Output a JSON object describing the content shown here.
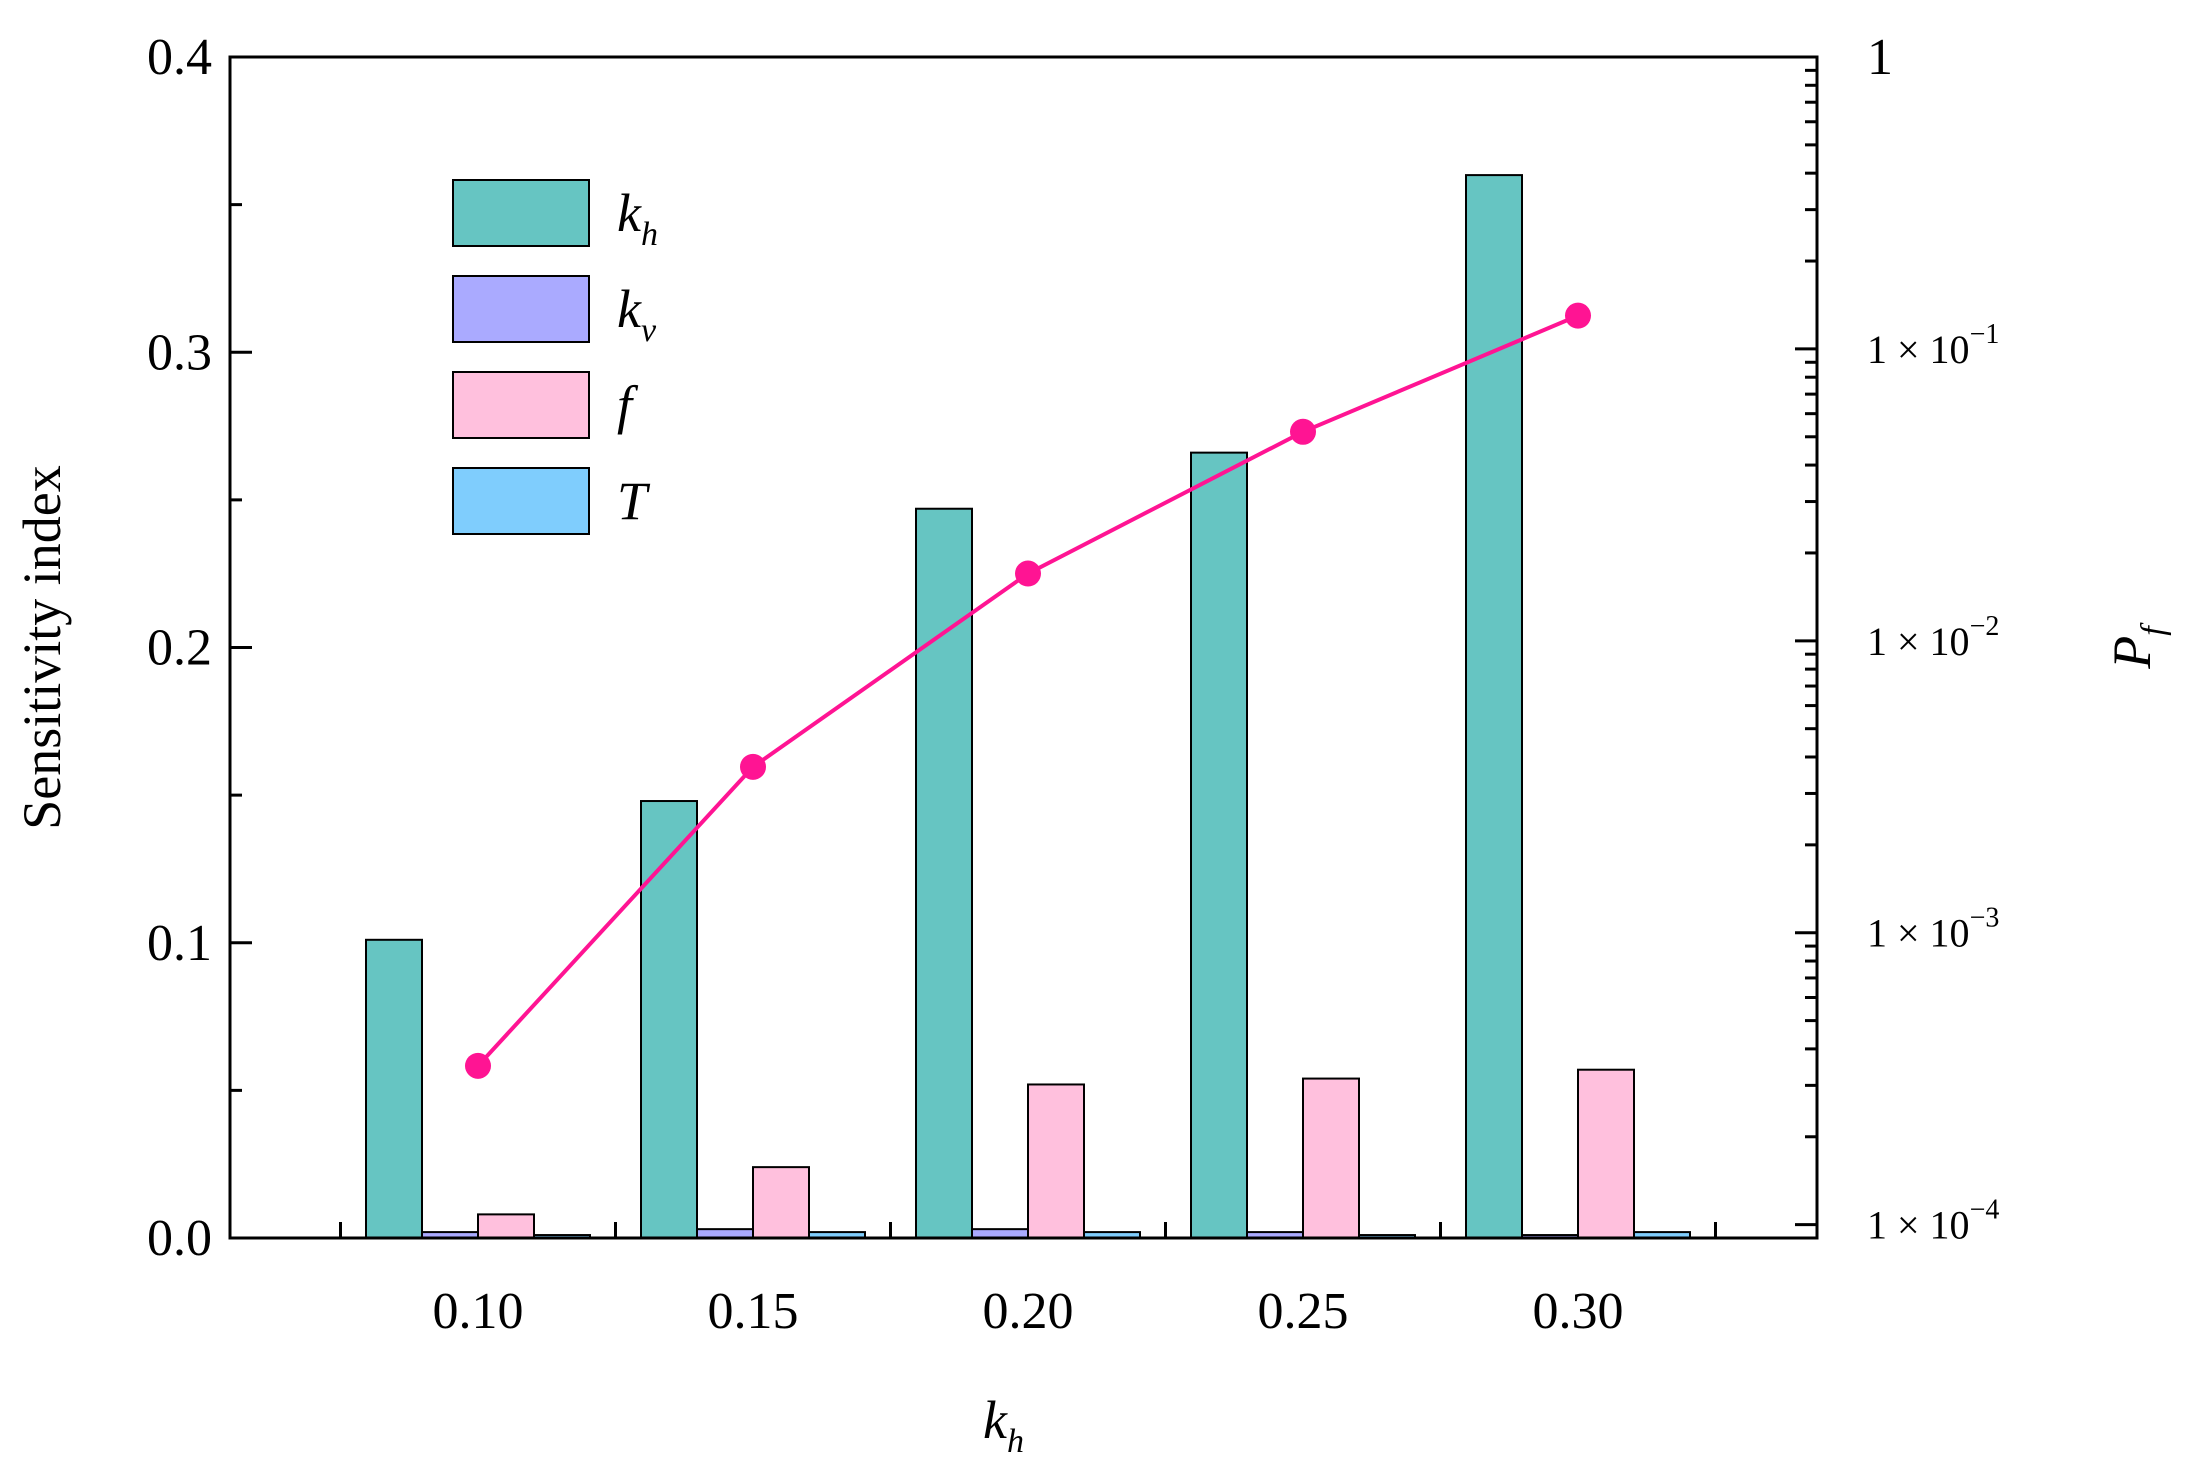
{
  "chart_data": {
    "type": "bar",
    "categories": [
      "0.10",
      "0.15",
      "0.20",
      "0.25",
      "0.30"
    ],
    "series": [
      {
        "name": "k_h",
        "label_main": "k",
        "label_sub": "h",
        "color": "#66c5c2",
        "values": [
          0.101,
          0.148,
          0.247,
          0.266,
          0.36
        ]
      },
      {
        "name": "k_v",
        "label_main": "k",
        "label_sub": "v",
        "color": "#aaaaff",
        "values": [
          0.002,
          0.003,
          0.003,
          0.002,
          0.001
        ]
      },
      {
        "name": "f",
        "label_main": "f",
        "label_sub": "",
        "color": "#ffc0dd",
        "values": [
          0.008,
          0.024,
          0.052,
          0.054,
          0.057
        ]
      },
      {
        "name": "T",
        "label_main": "T",
        "label_sub": "",
        "color": "#7fcdfd",
        "values": [
          0.001,
          0.002,
          0.002,
          0.001,
          0.002
        ]
      }
    ],
    "line_series": {
      "axis": "right",
      "color": "#ff1493",
      "x": [
        "0.10",
        "0.15",
        "0.20",
        "0.25",
        "0.30"
      ],
      "values": [
        0.00035,
        0.0037,
        0.017,
        0.052,
        0.13
      ]
    },
    "xlabel_main": "k",
    "xlabel_sub": "h",
    "ylabel": "Sensitivity index",
    "ylim": [
      0,
      0.4
    ],
    "y_ticks": [
      "0.0",
      "0.1",
      "0.2",
      "0.3",
      "0.4"
    ],
    "y2label_main": "P",
    "y2label_sub": "f",
    "y2_scale": "log",
    "y2lim": [
      9e-05,
      1
    ],
    "y2_ticks": [
      {
        "value": 1,
        "main": "1",
        "exp": ""
      },
      {
        "value": 0.1,
        "main": "1 × 10",
        "exp": "−1"
      },
      {
        "value": 0.01,
        "main": "1 × 10",
        "exp": "−2"
      },
      {
        "value": 0.001,
        "main": "1 × 10",
        "exp": "−3"
      },
      {
        "value": 0.0001,
        "main": "1 × 10",
        "exp": "−4"
      }
    ],
    "legend_position": "top-left",
    "grid": false
  }
}
